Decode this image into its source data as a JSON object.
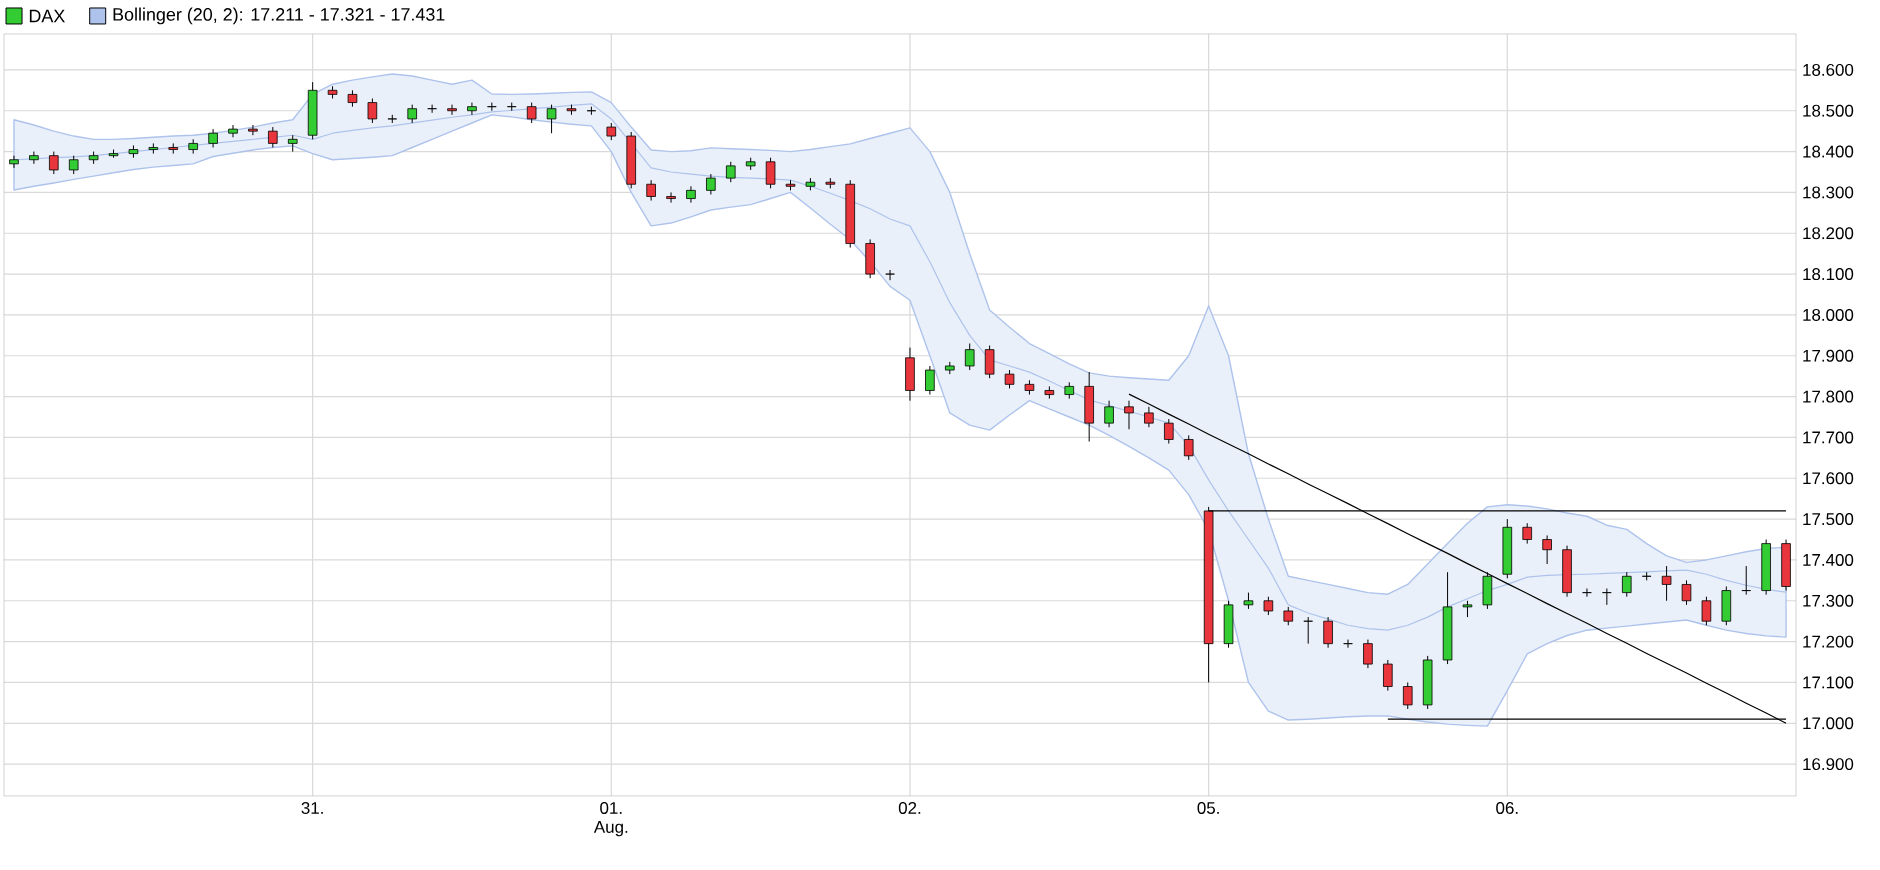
{
  "chart_data": {
    "type": "candlestick",
    "ylim": [
      16822,
      18688
    ],
    "categories": [
      null,
      null,
      null,
      null,
      null,
      null,
      null,
      null,
      null,
      null,
      null,
      null,
      null,
      null,
      null,
      "31.",
      null,
      null,
      null,
      null,
      null,
      null,
      null,
      null,
      null,
      null,
      null,
      null,
      null,
      null,
      "01. Aug.",
      null,
      null,
      null,
      null,
      null,
      null,
      null,
      null,
      null,
      null,
      null,
      null,
      null,
      null,
      "02.",
      null,
      null,
      null,
      null,
      null,
      null,
      null,
      null,
      null,
      null,
      null,
      null,
      null,
      null,
      "05.",
      null,
      null,
      null,
      null,
      null,
      null,
      null,
      null,
      null,
      null,
      null,
      null,
      null,
      null,
      "06.",
      null,
      null,
      null,
      null,
      null,
      null,
      null,
      null,
      null,
      null,
      null,
      null,
      null,
      null
    ],
    "yticks": [
      {
        "value": 16900,
        "label": "16.900"
      },
      {
        "value": 17000,
        "label": "17.000"
      },
      {
        "value": 17100,
        "label": "17.100"
      },
      {
        "value": 17200,
        "label": "17.200"
      },
      {
        "value": 17300,
        "label": "17.300"
      },
      {
        "value": 17400,
        "label": "17.400"
      },
      {
        "value": 17500,
        "label": "17.500"
      },
      {
        "value": 17600,
        "label": "17.600"
      },
      {
        "value": 17700,
        "label": "17.700"
      },
      {
        "value": 17800,
        "label": "17.800"
      },
      {
        "value": 17900,
        "label": "17.900"
      },
      {
        "value": 18000,
        "label": "18.000"
      },
      {
        "value": 18100,
        "label": "18.100"
      },
      {
        "value": 18200,
        "label": "18.200"
      },
      {
        "value": 18300,
        "label": "18.300"
      },
      {
        "value": 18400,
        "label": "18.400"
      },
      {
        "value": 18500,
        "label": "18.500"
      },
      {
        "value": 18600,
        "label": "18.600"
      }
    ],
    "grid": true,
    "legend": "top left",
    "series": [
      {
        "name": "Bollinger (20, 2): 17.211 - 17.321 - 17.431",
        "type": "line",
        "color": "#aec3ec",
        "values": [
          18380,
          18382,
          18385,
          18387,
          18390,
          18395,
          18400,
          18405,
          18410,
          18415,
          18420,
          18425,
          18430,
          18435,
          18440,
          18430,
          18445,
          18452,
          18458,
          18463,
          18470,
          18477,
          18484,
          18490,
          18497,
          18501,
          18505,
          18509,
          18513,
          18517,
          18480,
          18420,
          18360,
          18350,
          18345,
          18340,
          18337,
          18335,
          18333,
          18330,
          18315,
          18298,
          18280,
          18260,
          18235,
          18218,
          18130,
          18030,
          17950,
          17890,
          17875,
          17860,
          17838,
          17815,
          17792,
          17778,
          17764,
          17750,
          17735,
          17680,
          17596,
          17520,
          17450,
          17380,
          17290,
          17270,
          17255,
          17240,
          17232,
          17228,
          17240,
          17260,
          17285,
          17305,
          17325,
          17340,
          17358,
          17362,
          17364,
          17365,
          17367,
          17369,
          17371,
          17373,
          17375,
          17365,
          17350,
          17338,
          17328,
          17321
        ],
        "upper": [
          18478,
          18465,
          18450,
          18438,
          18430,
          18430,
          18432,
          18435,
          18438,
          18440,
          18445,
          18452,
          18460,
          18470,
          18478,
          18540,
          18565,
          18575,
          18583,
          18590,
          18585,
          18575,
          18565,
          18575,
          18541,
          18540,
          18541,
          18543,
          18545,
          18546,
          18520,
          18460,
          18404,
          18400,
          18402,
          18409,
          18407,
          18405,
          18403,
          18400,
          18405,
          18412,
          18419,
          18432,
          18445,
          18458,
          18400,
          18300,
          18150,
          18012,
          17970,
          17930,
          17905,
          17880,
          17858,
          17850,
          17846,
          17843,
          17840,
          17900,
          18022,
          17900,
          17660,
          17500,
          17360,
          17350,
          17340,
          17330,
          17320,
          17316,
          17340,
          17390,
          17440,
          17490,
          17530,
          17535,
          17532,
          17525,
          17515,
          17507,
          17485,
          17475,
          17440,
          17410,
          17394,
          17400,
          17410,
          17420,
          17428,
          17431
        ],
        "lower": [
          18306,
          18315,
          18323,
          18332,
          18340,
          18348,
          18356,
          18362,
          18366,
          18370,
          18388,
          18396,
          18404,
          18410,
          18414,
          18395,
          18380,
          18383,
          18386,
          18390,
          18410,
          18430,
          18450,
          18470,
          18490,
          18485,
          18478,
          18472,
          18467,
          18463,
          18400,
          18300,
          18218,
          18225,
          18240,
          18257,
          18264,
          18270,
          18285,
          18300,
          18262,
          18222,
          18184,
          18130,
          18070,
          18036,
          17900,
          17760,
          17730,
          17718,
          17755,
          17790,
          17770,
          17750,
          17730,
          17705,
          17678,
          17650,
          17620,
          17560,
          17473,
          17300,
          17100,
          17030,
          17008,
          17010,
          17013,
          17016,
          17018,
          17018,
          17010,
          17003,
          16998,
          16995,
          16993,
          17080,
          17170,
          17195,
          17215,
          17228,
          17233,
          17238,
          17243,
          17248,
          17253,
          17240,
          17228,
          17220,
          17214,
          17211
        ]
      },
      {
        "name": "DAX",
        "color": "#33cc33",
        "colors": [
          "#33cc33",
          "#33cc33",
          "#e8363c",
          "#33cc33",
          "#33cc33",
          "#33cc33",
          "#33cc33",
          "#33cc33",
          "#e8363c",
          "#33cc33",
          "#33cc33",
          "#33cc33",
          "#e8363c",
          "#e8363c",
          "#33cc33",
          "#33cc33",
          "#e8363c",
          "#e8363c",
          "#e8363c",
          "#000000",
          "#33cc33",
          "#000000",
          "#e8363c",
          "#33cc33",
          "#000000",
          "#000000",
          "#e8363c",
          "#33cc33",
          "#e8363c",
          "#000000",
          "#e8363c",
          "#e8363c",
          "#e8363c",
          "#e8363c",
          "#33cc33",
          "#33cc33",
          "#33cc33",
          "#33cc33",
          "#e8363c",
          "#e8363c",
          "#33cc33",
          "#e8363c",
          "#e8363c",
          "#e8363c",
          "#000000",
          "#e8363c",
          "#33cc33",
          "#33cc33",
          "#33cc33",
          "#e8363c",
          "#e8363c",
          "#e8363c",
          "#e8363c",
          "#33cc33",
          "#e8363c",
          "#33cc33",
          "#e8363c",
          "#e8363c",
          "#e8363c",
          "#e8363c",
          "#e8363c",
          "#33cc33",
          "#33cc33",
          "#e8363c",
          "#e8363c",
          "#000000",
          "#e8363c",
          "#000000",
          "#e8363c",
          "#e8363c",
          "#e8363c",
          "#33cc33",
          "#33cc33",
          "#33cc33",
          "#33cc33",
          "#33cc33",
          "#e8363c",
          "#e8363c",
          "#e8363c",
          "#000000",
          "#000000",
          "#33cc33",
          "#000000",
          "#e8363c",
          "#e8363c",
          "#e8363c",
          "#33cc33",
          "#000000",
          "#33cc33",
          "#e8363c"
        ],
        "ohlc": [
          [
            18370,
            18390,
            18360,
            18380
          ],
          [
            18380,
            18400,
            18370,
            18390
          ],
          [
            18390,
            18400,
            18345,
            18355
          ],
          [
            18355,
            18390,
            18345,
            18380
          ],
          [
            18380,
            18400,
            18370,
            18390
          ],
          [
            18390,
            18405,
            18385,
            18395
          ],
          [
            18395,
            18415,
            18385,
            18405
          ],
          [
            18405,
            18420,
            18395,
            18410
          ],
          [
            18410,
            18420,
            18395,
            18405
          ],
          [
            18405,
            18430,
            18395,
            18420
          ],
          [
            18420,
            18455,
            18410,
            18445
          ],
          [
            18445,
            18465,
            18435,
            18455
          ],
          [
            18455,
            18465,
            18440,
            18450
          ],
          [
            18450,
            18460,
            18410,
            18420
          ],
          [
            18420,
            18440,
            18400,
            18430
          ],
          [
            18440,
            18570,
            18430,
            18550
          ],
          [
            18550,
            18560,
            18530,
            18540
          ],
          [
            18540,
            18550,
            18510,
            18520
          ],
          [
            18520,
            18530,
            18470,
            18480
          ],
          [
            18480,
            18490,
            18470,
            18480
          ],
          [
            18480,
            18515,
            18470,
            18505
          ],
          [
            18505,
            18515,
            18495,
            18505
          ],
          [
            18505,
            18515,
            18490,
            18500
          ],
          [
            18500,
            18520,
            18490,
            18510
          ],
          [
            18510,
            18520,
            18500,
            18510
          ],
          [
            18510,
            18520,
            18500,
            18510
          ],
          [
            18510,
            18520,
            18470,
            18480
          ],
          [
            18480,
            18515,
            18445,
            18505
          ],
          [
            18505,
            18515,
            18490,
            18500
          ],
          [
            18500,
            18510,
            18490,
            18500
          ],
          [
            18460,
            18470,
            18428,
            18438
          ],
          [
            18438,
            18448,
            18310,
            18320
          ],
          [
            18320,
            18330,
            18280,
            18290
          ],
          [
            18290,
            18300,
            18275,
            18285
          ],
          [
            18285,
            18315,
            18275,
            18305
          ],
          [
            18305,
            18345,
            18295,
            18335
          ],
          [
            18335,
            18375,
            18325,
            18365
          ],
          [
            18365,
            18385,
            18355,
            18375
          ],
          [
            18375,
            18385,
            18310,
            18320
          ],
          [
            18320,
            18330,
            18305,
            18315
          ],
          [
            18315,
            18335,
            18305,
            18325
          ],
          [
            18325,
            18335,
            18310,
            18320
          ],
          [
            18320,
            18330,
            18165,
            18175
          ],
          [
            18175,
            18185,
            18090,
            18100
          ],
          [
            18100,
            18110,
            18085,
            18100
          ],
          [
            17895,
            17920,
            17790,
            17815
          ],
          [
            17815,
            17875,
            17805,
            17865
          ],
          [
            17865,
            17885,
            17855,
            17875
          ],
          [
            17875,
            17930,
            17865,
            17915
          ],
          [
            17915,
            17925,
            17845,
            17855
          ],
          [
            17855,
            17865,
            17820,
            17830
          ],
          [
            17830,
            17840,
            17805,
            17815
          ],
          [
            17815,
            17825,
            17795,
            17805
          ],
          [
            17805,
            17835,
            17795,
            17825
          ],
          [
            17825,
            17860,
            17690,
            17735
          ],
          [
            17735,
            17790,
            17725,
            17775
          ],
          [
            17775,
            17790,
            17720,
            17760
          ],
          [
            17760,
            17775,
            17725,
            17735
          ],
          [
            17735,
            17745,
            17685,
            17695
          ],
          [
            17695,
            17705,
            17645,
            17655
          ],
          [
            17520,
            17530,
            17100,
            17195
          ],
          [
            17195,
            17300,
            17185,
            17290
          ],
          [
            17290,
            17320,
            17280,
            17300
          ],
          [
            17300,
            17310,
            17265,
            17275
          ],
          [
            17275,
            17285,
            17240,
            17250
          ],
          [
            17250,
            17260,
            17195,
            17250
          ],
          [
            17250,
            17260,
            17185,
            17195
          ],
          [
            17195,
            17205,
            17185,
            17195
          ],
          [
            17195,
            17205,
            17135,
            17145
          ],
          [
            17145,
            17155,
            17080,
            17090
          ],
          [
            17090,
            17100,
            17035,
            17045
          ],
          [
            17045,
            17165,
            17035,
            17155
          ],
          [
            17155,
            17370,
            17145,
            17285
          ],
          [
            17285,
            17300,
            17260,
            17290
          ],
          [
            17290,
            17370,
            17280,
            17360
          ],
          [
            17365,
            17500,
            17355,
            17480
          ],
          [
            17480,
            17490,
            17440,
            17450
          ],
          [
            17450,
            17460,
            17390,
            17425
          ],
          [
            17425,
            17435,
            17310,
            17320
          ],
          [
            17320,
            17330,
            17310,
            17320
          ],
          [
            17320,
            17330,
            17290,
            17320
          ],
          [
            17320,
            17370,
            17310,
            17360
          ],
          [
            17360,
            17370,
            17350,
            17360
          ],
          [
            17360,
            17385,
            17300,
            17340
          ],
          [
            17340,
            17350,
            17290,
            17300
          ],
          [
            17300,
            17310,
            17240,
            17250
          ],
          [
            17250,
            17335,
            17240,
            17325
          ],
          [
            17325,
            17385,
            17315,
            17325
          ],
          [
            17325,
            17450,
            17315,
            17440
          ],
          [
            17440,
            17450,
            17325,
            17335
          ]
        ]
      },
      {
        "type": "line",
        "color": "#000000",
        "values": [
          null,
          null,
          null,
          null,
          null,
          null,
          null,
          null,
          null,
          null,
          null,
          null,
          null,
          null,
          null,
          null,
          null,
          null,
          null,
          null,
          null,
          null,
          null,
          null,
          null,
          null,
          null,
          null,
          null,
          null,
          null,
          null,
          null,
          null,
          null,
          null,
          null,
          null,
          null,
          null,
          null,
          null,
          null,
          null,
          null,
          null,
          null,
          null,
          null,
          null,
          null,
          null,
          null,
          null,
          null,
          null,
          17806,
          17782,
          17757,
          17733,
          17708,
          17684,
          17660,
          17635,
          17611,
          17586,
          17562,
          17538,
          17513,
          17489,
          17464,
          17440,
          17416,
          17391,
          17367,
          17342,
          17318,
          17293,
          17269,
          17245,
          17220,
          17196,
          17171,
          17147,
          17123,
          17098,
          17074,
          17049,
          17025,
          17000
        ]
      },
      {
        "type": "line",
        "color": "#000000",
        "values": [
          null,
          null,
          null,
          null,
          null,
          null,
          null,
          null,
          null,
          null,
          null,
          null,
          null,
          null,
          null,
          null,
          null,
          null,
          null,
          null,
          null,
          null,
          null,
          null,
          null,
          null,
          null,
          null,
          null,
          null,
          null,
          null,
          null,
          null,
          null,
          null,
          null,
          null,
          null,
          null,
          null,
          null,
          null,
          null,
          null,
          null,
          null,
          null,
          null,
          null,
          null,
          null,
          null,
          null,
          null,
          null,
          null,
          null,
          null,
          null,
          17520,
          17520,
          17520,
          17520,
          17520,
          17520,
          17520,
          17520,
          17520,
          17520,
          17520,
          17520,
          17520,
          17520,
          17520,
          17520,
          17520,
          17520,
          17520,
          17520,
          17520,
          17520,
          17520,
          17520,
          17520,
          17520,
          17520,
          17520,
          17520,
          17520
        ]
      },
      {
        "type": "line",
        "color": "#000000",
        "values": [
          null,
          null,
          null,
          null,
          null,
          null,
          null,
          null,
          null,
          null,
          null,
          null,
          null,
          null,
          null,
          null,
          null,
          null,
          null,
          null,
          null,
          null,
          null,
          null,
          null,
          null,
          null,
          null,
          null,
          null,
          null,
          null,
          null,
          null,
          null,
          null,
          null,
          null,
          null,
          null,
          null,
          null,
          null,
          null,
          null,
          null,
          null,
          null,
          null,
          null,
          null,
          null,
          null,
          null,
          null,
          null,
          null,
          null,
          null,
          null,
          null,
          null,
          null,
          null,
          null,
          null,
          null,
          null,
          null,
          17010,
          17010,
          17010,
          17010,
          17010,
          17010,
          17010,
          17010,
          17010,
          17010,
          17010,
          17010,
          17010,
          17010,
          17010,
          17010,
          17010,
          17010,
          17010,
          17010,
          17010
        ]
      }
    ]
  }
}
